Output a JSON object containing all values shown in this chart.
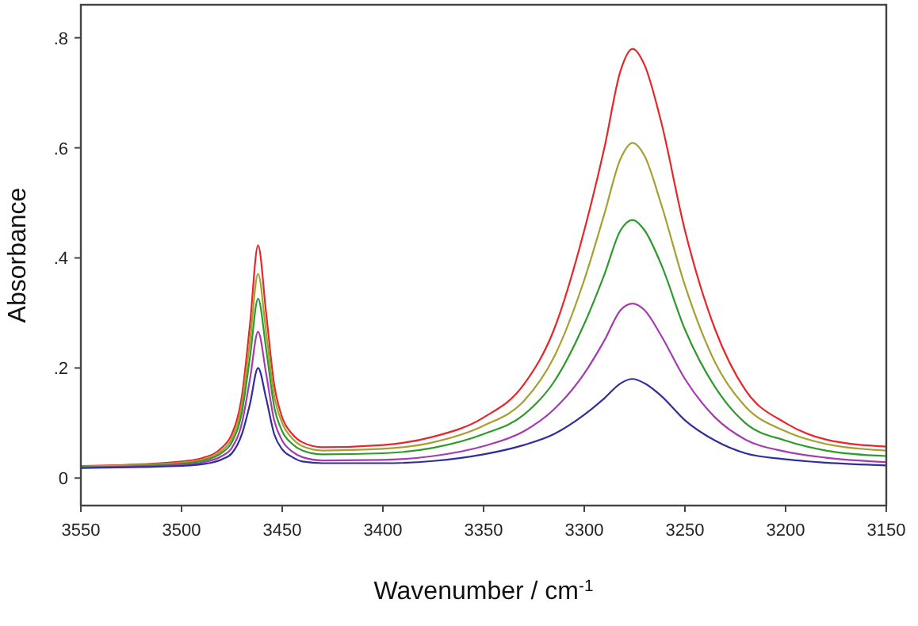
{
  "chart_data": {
    "type": "line",
    "xlabel": "Wavenumber / cm$^{-1}$",
    "ylabel": "Absorbance",
    "x": [
      3550,
      3520,
      3500,
      3490,
      3480,
      3475,
      3470,
      3466,
      3462,
      3458,
      3454,
      3450,
      3445,
      3440,
      3430,
      3400,
      3375,
      3350,
      3330,
      3315,
      3300,
      3290,
      3282,
      3276,
      3270,
      3262,
      3250,
      3235,
      3220,
      3200,
      3180,
      3150
    ],
    "series": [
      {
        "color": "#e8262a",
        "values": [
          0.022,
          0.025,
          0.03,
          0.036,
          0.055,
          0.08,
          0.15,
          0.28,
          0.423,
          0.3,
          0.17,
          0.11,
          0.08,
          0.065,
          0.056,
          0.06,
          0.075,
          0.11,
          0.17,
          0.27,
          0.45,
          0.6,
          0.74,
          0.78,
          0.75,
          0.65,
          0.45,
          0.27,
          0.16,
          0.1,
          0.07,
          0.057
        ]
      },
      {
        "color": "#a6a032",
        "values": [
          0.021,
          0.024,
          0.028,
          0.033,
          0.05,
          0.072,
          0.135,
          0.25,
          0.371,
          0.265,
          0.15,
          0.1,
          0.072,
          0.058,
          0.05,
          0.053,
          0.065,
          0.095,
          0.14,
          0.22,
          0.36,
          0.48,
          0.58,
          0.609,
          0.585,
          0.5,
          0.35,
          0.21,
          0.13,
          0.085,
          0.062,
          0.05
        ]
      },
      {
        "color": "#2e9a2e",
        "values": [
          0.02,
          0.022,
          0.026,
          0.031,
          0.046,
          0.065,
          0.12,
          0.22,
          0.326,
          0.235,
          0.13,
          0.085,
          0.062,
          0.05,
          0.043,
          0.045,
          0.055,
          0.08,
          0.115,
          0.175,
          0.28,
          0.37,
          0.45,
          0.469,
          0.45,
          0.39,
          0.27,
          0.165,
          0.1,
          0.068,
          0.05,
          0.04
        ]
      },
      {
        "color": "#a43cb0",
        "values": [
          0.019,
          0.021,
          0.024,
          0.028,
          0.04,
          0.055,
          0.1,
          0.18,
          0.266,
          0.19,
          0.105,
          0.068,
          0.048,
          0.038,
          0.032,
          0.033,
          0.04,
          0.058,
          0.085,
          0.125,
          0.19,
          0.25,
          0.305,
          0.317,
          0.305,
          0.26,
          0.18,
          0.11,
          0.07,
          0.048,
          0.037,
          0.029
        ]
      },
      {
        "color": "#2e2e9c",
        "values": [
          0.018,
          0.02,
          0.022,
          0.025,
          0.034,
          0.045,
          0.08,
          0.135,
          0.2,
          0.145,
          0.08,
          0.052,
          0.038,
          0.03,
          0.027,
          0.027,
          0.031,
          0.043,
          0.06,
          0.08,
          0.115,
          0.145,
          0.172,
          0.18,
          0.172,
          0.15,
          0.105,
          0.068,
          0.045,
          0.034,
          0.028,
          0.023
        ]
      }
    ],
    "xlim": [
      3550,
      3150
    ],
    "xticks": [
      3550,
      3500,
      3450,
      3400,
      3350,
      3300,
      3250,
      3200,
      3150
    ],
    "ylim": [
      -0.05,
      0.86
    ],
    "yticks": [
      0,
      {
        "value": 0.2,
        "label": ".2"
      },
      {
        "value": 0.4,
        "label": ".4"
      },
      {
        "value": 0.6,
        "label": ".6"
      },
      {
        "value": 0.8,
        "label": ".8"
      }
    ],
    "grid": false,
    "marker": "none",
    "line_style": "solid"
  }
}
